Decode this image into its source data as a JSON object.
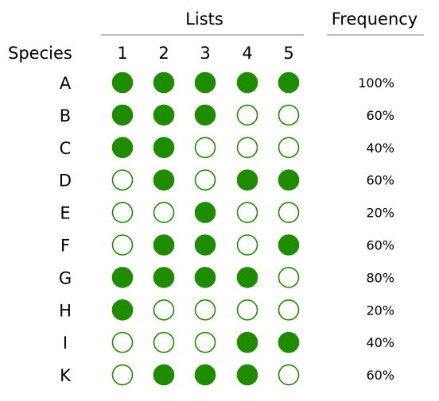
{
  "header": {
    "lists_label": "Lists",
    "frequency_label": "Frequency",
    "species_label": "Species"
  },
  "list_numbers": [
    "1",
    "2",
    "3",
    "4",
    "5"
  ],
  "species": [
    {
      "name": "A",
      "presence": [
        1,
        1,
        1,
        1,
        1
      ],
      "frequency": "100%"
    },
    {
      "name": "B",
      "presence": [
        1,
        1,
        1,
        0,
        0
      ],
      "frequency": "60%"
    },
    {
      "name": "C",
      "presence": [
        1,
        1,
        0,
        0,
        0
      ],
      "frequency": "40%"
    },
    {
      "name": "D",
      "presence": [
        0,
        1,
        0,
        1,
        1
      ],
      "frequency": "60%"
    },
    {
      "name": "E",
      "presence": [
        0,
        0,
        1,
        0,
        0
      ],
      "frequency": "20%"
    },
    {
      "name": "F",
      "presence": [
        0,
        1,
        1,
        0,
        1
      ],
      "frequency": "60%"
    },
    {
      "name": "G",
      "presence": [
        1,
        1,
        1,
        1,
        0
      ],
      "frequency": "80%"
    },
    {
      "name": "H",
      "presence": [
        1,
        0,
        0,
        0,
        0
      ],
      "frequency": "20%"
    },
    {
      "name": "I",
      "presence": [
        0,
        0,
        0,
        1,
        1
      ],
      "frequency": "40%"
    },
    {
      "name": "K",
      "presence": [
        0,
        1,
        1,
        1,
        0
      ],
      "frequency": "60%"
    }
  ],
  "colors": {
    "present_fill": "#1f8c00",
    "marker_stroke": "#1f8c00",
    "absent_fill": "#ffffff",
    "rule": "#808080",
    "text": "#000000"
  }
}
